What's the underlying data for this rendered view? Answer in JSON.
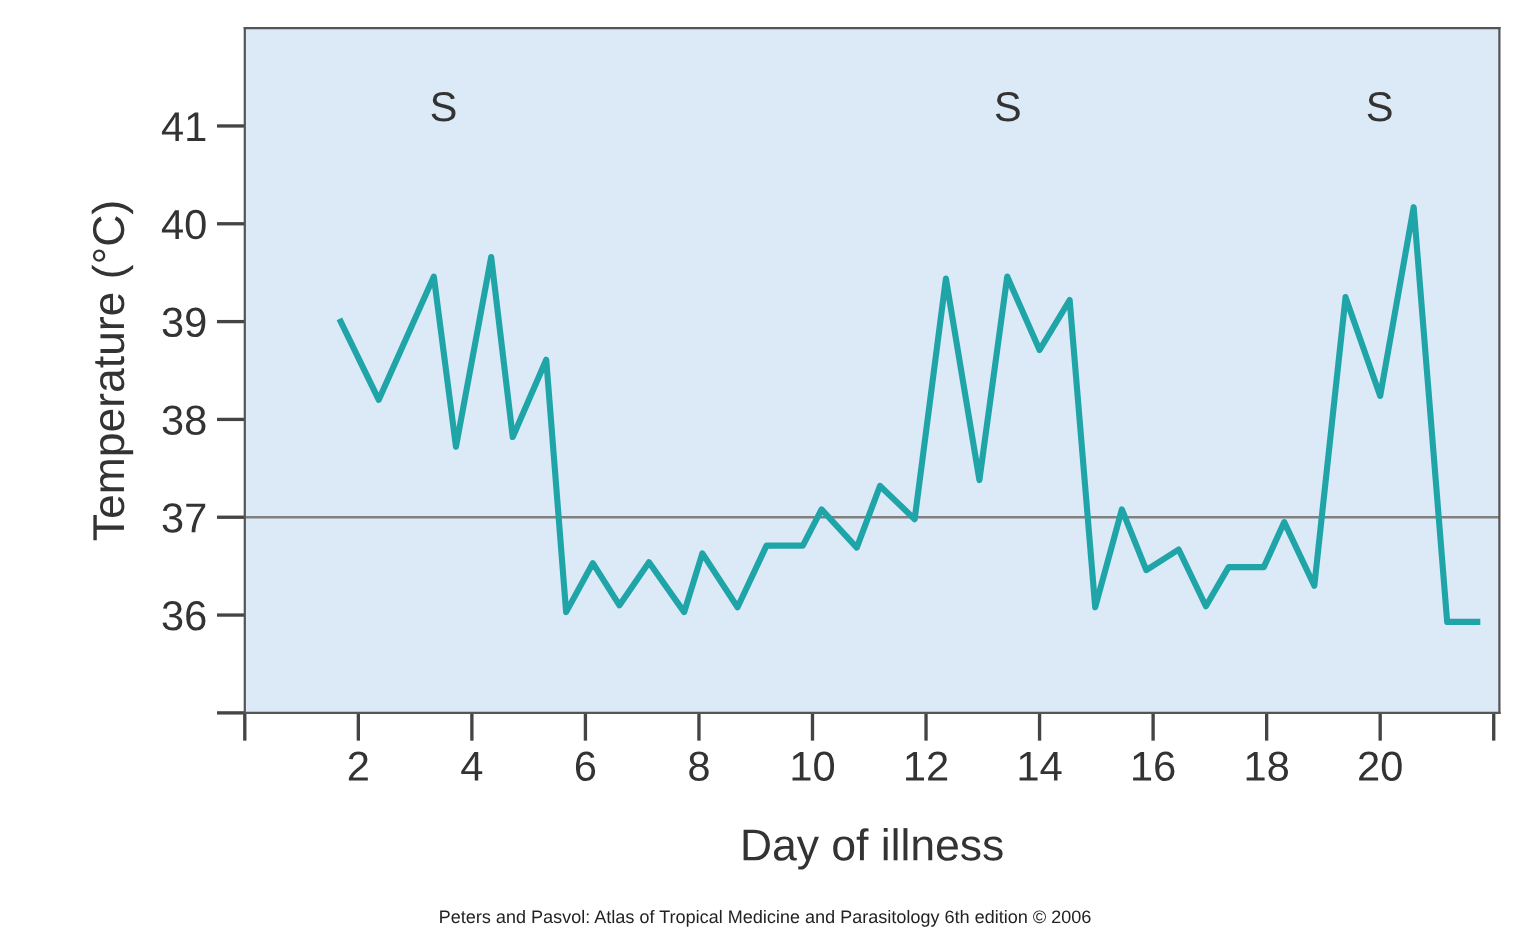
{
  "chart_data": {
    "type": "line",
    "xlabel": "Day of illness",
    "ylabel": "Temperature (°C)",
    "series": [
      {
        "color": "#1fa5a8",
        "x": [
          1.69,
          2.36,
          3.33,
          3.72,
          4.34,
          4.72,
          5.31,
          5.66,
          6.13,
          6.6,
          7.12,
          7.74,
          8.06,
          8.68,
          9.19,
          9.83,
          10.16,
          10.78,
          11.19,
          11.8,
          12.35,
          12.94,
          13.43,
          14.0,
          14.53,
          14.98,
          15.45,
          15.88,
          16.45,
          16.93,
          17.33,
          17.95,
          18.31,
          18.84,
          19.39,
          20.0,
          20.59,
          21.18,
          21.71
        ],
        "values": [
          39.0,
          38.2,
          39.46,
          37.72,
          39.66,
          37.82,
          38.61,
          36.03,
          36.53,
          36.1,
          36.54,
          36.03,
          36.63,
          36.08,
          36.71,
          36.71,
          37.08,
          36.69,
          37.32,
          36.98,
          39.44,
          37.38,
          39.46,
          38.71,
          39.22,
          36.08,
          37.08,
          36.46,
          36.67,
          36.09,
          36.49,
          36.49,
          36.95,
          36.3,
          39.25,
          38.24,
          40.17,
          35.93,
          35.93
        ]
      }
    ],
    "xlim": [
      0,
      22.1
    ],
    "xticks": [
      {
        "value": 0,
        "label": null
      },
      2,
      4,
      6,
      8,
      10,
      12,
      14,
      16,
      18,
      20,
      {
        "value": 22,
        "label": null
      }
    ],
    "ylim": [
      35,
      42
    ],
    "yticks": [
      {
        "value": 35,
        "label": null
      },
      36,
      37,
      38,
      39,
      40,
      41
    ],
    "ref_lines": [
      {
        "axis": "y",
        "value": 37,
        "color": "#808080"
      }
    ],
    "annotations": [
      "S",
      "S",
      "S",
      "Peters and Pasvol: Atlas of Tropical Medicine and Parasitology 6th edition © 2006"
    ],
    "grid": false,
    "legend": false,
    "marker": "none",
    "line_style": "solid"
  }
}
